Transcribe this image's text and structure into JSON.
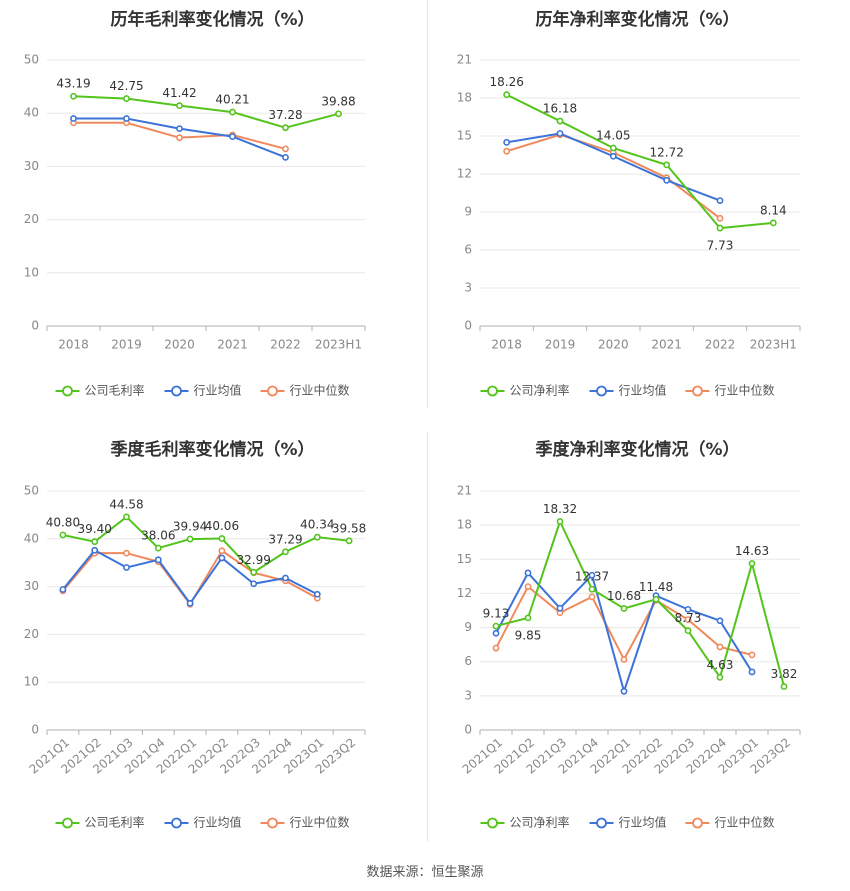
{
  "colors": {
    "company": "#52c41a",
    "industry_avg": "#3b73d9",
    "industry_median": "#f08a5d",
    "grid": "#e8e8e8",
    "axis": "#b0b0b0",
    "tick": "#888888",
    "title": "#333333",
    "label": "#333333"
  },
  "source": "数据来源：恒生聚源",
  "chart_data": [
    {
      "type": "line",
      "title": "历年毛利率变化情况（%）",
      "categories": [
        "2018",
        "2019",
        "2020",
        "2021",
        "2022",
        "2023H1"
      ],
      "ylim": [
        0,
        50
      ],
      "yticks": [
        0,
        10,
        20,
        30,
        40,
        50
      ],
      "tick_labels": [
        "0",
        "10",
        "20",
        "30",
        "40",
        "50"
      ],
      "x_rotated": false,
      "legend_position": "bottom-center",
      "series": [
        {
          "name": "公司毛利率",
          "key": "company",
          "values": [
            43.19,
            42.75,
            41.42,
            40.21,
            37.28,
            39.88
          ],
          "labels": [
            "43.19",
            "42.75",
            "41.42",
            "40.21",
            "37.28",
            "39.88"
          ]
        },
        {
          "name": "行业均值",
          "key": "industry_avg",
          "values": [
            39.0,
            39.0,
            37.1,
            35.6,
            31.7,
            null
          ]
        },
        {
          "name": "行业中位数",
          "key": "industry_median",
          "values": [
            38.2,
            38.2,
            35.4,
            35.9,
            33.3,
            null
          ]
        }
      ]
    },
    {
      "type": "line",
      "title": "历年净利率变化情况（%）",
      "categories": [
        "2018",
        "2019",
        "2020",
        "2021",
        "2022",
        "2023H1"
      ],
      "ylim": [
        0,
        21
      ],
      "yticks": [
        0,
        3,
        6,
        9,
        12,
        15,
        18,
        21
      ],
      "tick_labels": [
        "0",
        "3",
        "6",
        "9",
        "12",
        "15",
        "18",
        "21"
      ],
      "x_rotated": false,
      "legend_position": "bottom-center",
      "series": [
        {
          "name": "公司净利率",
          "key": "company",
          "values": [
            18.26,
            16.18,
            14.05,
            12.72,
            7.73,
            8.14
          ],
          "labels": [
            "18.26",
            "16.18",
            "14.05",
            "12.72",
            "7.73",
            "8.14"
          ]
        },
        {
          "name": "行业均值",
          "key": "industry_avg",
          "values": [
            14.5,
            15.2,
            13.4,
            11.5,
            9.9,
            null
          ]
        },
        {
          "name": "行业中位数",
          "key": "industry_median",
          "values": [
            13.8,
            15.1,
            13.7,
            11.7,
            8.5,
            null
          ]
        }
      ]
    },
    {
      "type": "line",
      "title": "季度毛利率变化情况（%）",
      "categories": [
        "2021Q1",
        "2021Q2",
        "2021Q3",
        "2021Q4",
        "2022Q1",
        "2022Q2",
        "2022Q3",
        "2022Q4",
        "2023Q1",
        "2023Q2"
      ],
      "ylim": [
        0,
        50
      ],
      "yticks": [
        0,
        10,
        20,
        30,
        40,
        50
      ],
      "tick_labels": [
        "0",
        "10",
        "20",
        "30",
        "40",
        "50"
      ],
      "x_rotated": true,
      "legend_position": "bottom-center",
      "series": [
        {
          "name": "公司毛利率",
          "key": "company",
          "values": [
            40.8,
            39.4,
            44.58,
            38.06,
            39.94,
            40.06,
            32.99,
            37.29,
            40.34,
            39.58
          ],
          "labels": [
            "40.80",
            "39.40",
            "44.58",
            "38.06",
            "39.94",
            "40.06",
            "32.99",
            "37.29",
            "40.34",
            "39.58"
          ]
        },
        {
          "name": "行业均值",
          "key": "industry_avg",
          "values": [
            29.4,
            37.6,
            34.0,
            35.6,
            26.5,
            36.0,
            30.6,
            31.8,
            28.4,
            null
          ]
        },
        {
          "name": "行业中位数",
          "key": "industry_median",
          "values": [
            29.1,
            37.0,
            37.0,
            35.2,
            26.3,
            37.5,
            32.9,
            31.2,
            27.6,
            null
          ]
        }
      ]
    },
    {
      "type": "line",
      "title": "季度净利率变化情况（%）",
      "categories": [
        "2021Q1",
        "2021Q2",
        "2021Q3",
        "2021Q4",
        "2022Q1",
        "2022Q2",
        "2022Q3",
        "2022Q4",
        "2023Q1",
        "2023Q2"
      ],
      "ylim": [
        0,
        21
      ],
      "yticks": [
        0,
        3,
        6,
        9,
        12,
        15,
        18,
        21
      ],
      "tick_labels": [
        "0",
        "3",
        "6",
        "9",
        "12",
        "15",
        "18",
        "21"
      ],
      "x_rotated": true,
      "legend_position": "bottom-center",
      "series": [
        {
          "name": "公司净利率",
          "key": "company",
          "values": [
            9.13,
            9.85,
            18.32,
            12.37,
            10.68,
            11.48,
            8.73,
            4.63,
            14.63,
            3.82
          ],
          "labels": [
            "9.13",
            "9.85",
            "18.32",
            "12.37",
            "10.68",
            "11.48",
            "8.73",
            "4.63",
            "14.63",
            "3.82"
          ]
        },
        {
          "name": "行业均值",
          "key": "industry_avg",
          "values": [
            8.5,
            13.8,
            10.7,
            13.6,
            3.4,
            11.8,
            10.6,
            9.6,
            5.1,
            null
          ]
        },
        {
          "name": "行业中位数",
          "key": "industry_median",
          "values": [
            7.2,
            12.6,
            10.3,
            11.7,
            6.2,
            11.4,
            9.7,
            7.3,
            6.6,
            null
          ]
        }
      ]
    }
  ]
}
